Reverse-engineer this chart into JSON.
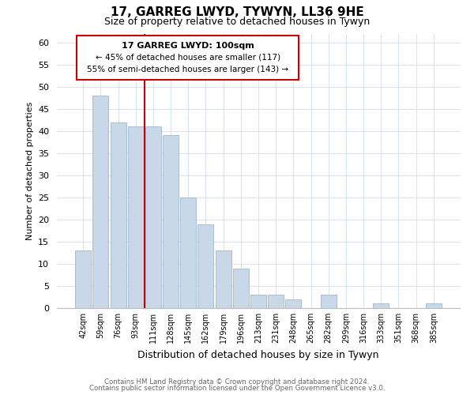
{
  "title": "17, GARREG LWYD, TYWYN, LL36 9HE",
  "subtitle": "Size of property relative to detached houses in Tywyn",
  "xlabel": "Distribution of detached houses by size in Tywyn",
  "ylabel": "Number of detached properties",
  "bar_labels": [
    "42sqm",
    "59sqm",
    "76sqm",
    "93sqm",
    "111sqm",
    "128sqm",
    "145sqm",
    "162sqm",
    "179sqm",
    "196sqm",
    "213sqm",
    "231sqm",
    "248sqm",
    "265sqm",
    "282sqm",
    "299sqm",
    "316sqm",
    "333sqm",
    "351sqm",
    "368sqm",
    "385sqm"
  ],
  "bar_values": [
    13,
    48,
    42,
    41,
    41,
    39,
    25,
    19,
    13,
    9,
    3,
    3,
    2,
    0,
    3,
    0,
    0,
    1,
    0,
    0,
    1
  ],
  "bar_color": "#c8d8e8",
  "bar_edge_color": "#a0b8cc",
  "vline_x": 3.5,
  "vline_color": "#cc0000",
  "ylim": [
    0,
    62
  ],
  "yticks": [
    0,
    5,
    10,
    15,
    20,
    25,
    30,
    35,
    40,
    45,
    50,
    55,
    60
  ],
  "annotation_title": "17 GARREG LWYD: 100sqm",
  "annotation_line1": "← 45% of detached houses are smaller (117)",
  "annotation_line2": "55% of semi-detached houses are larger (143) →",
  "annotation_box_color": "#ffffff",
  "annotation_box_edge": "#cc0000",
  "footer_line1": "Contains HM Land Registry data © Crown copyright and database right 2024.",
  "footer_line2": "Contains public sector information licensed under the Open Government Licence v3.0.",
  "grid_color": "#d8e4f0",
  "background_color": "#ffffff"
}
